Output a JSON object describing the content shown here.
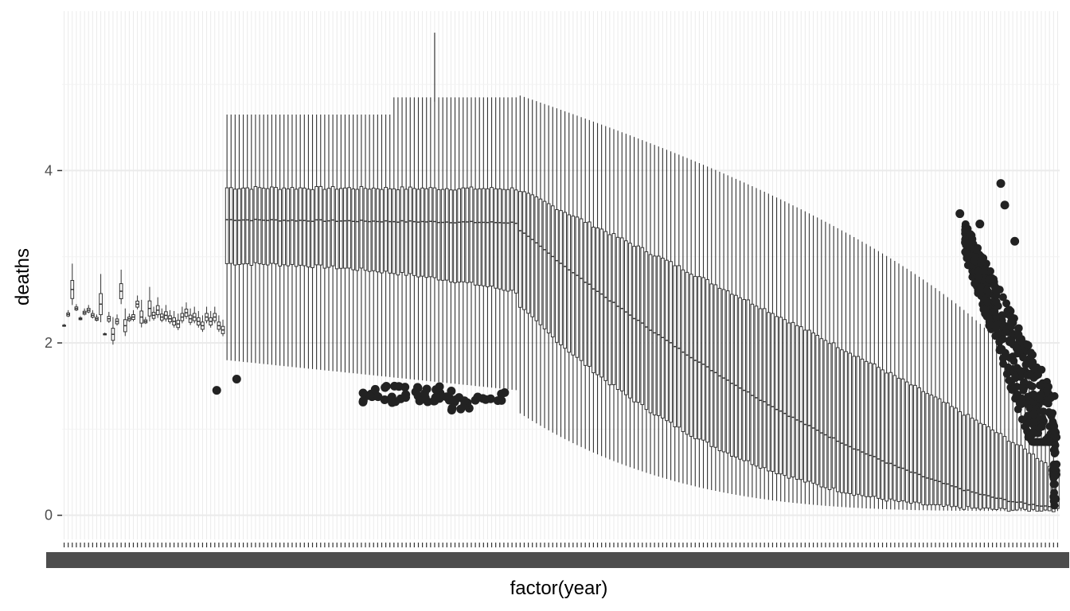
{
  "chart_data": {
    "type": "boxplot",
    "xlabel": "factor(year)",
    "ylabel": "deaths",
    "ylim": [
      -0.28,
      5.85
    ],
    "y_ticks": [
      0,
      2,
      4
    ],
    "y_tick_labels": [
      "0",
      "2",
      "4"
    ],
    "x_tick_labels_note": "overlapping year labels (unreadable)",
    "category_count": 245,
    "panel_background": "#ffffff",
    "grid_color": "#ebebeb",
    "box_color": "#333333",
    "outlier_color": "#222222",
    "early_years": {
      "columns": 40,
      "medians": [
        2.2,
        2.33,
        2.62,
        2.4,
        2.28,
        2.35,
        2.38,
        2.32,
        2.28,
        2.45,
        2.1,
        2.28,
        2.1,
        2.25,
        2.6,
        2.2,
        2.28,
        2.3,
        2.45,
        2.3,
        2.25,
        2.4,
        2.32,
        2.38,
        2.3,
        2.32,
        2.28,
        2.25,
        2.22,
        2.3,
        2.35,
        2.28,
        2.3,
        2.25,
        2.2,
        2.3,
        2.25,
        2.3,
        2.2,
        2.15
      ],
      "spreads": [
        0.02,
        0.05,
        0.3,
        0.05,
        0.03,
        0.05,
        0.06,
        0.06,
        0.05,
        0.35,
        0.02,
        0.08,
        0.2,
        0.08,
        0.25,
        0.2,
        0.06,
        0.08,
        0.1,
        0.2,
        0.05,
        0.25,
        0.1,
        0.15,
        0.1,
        0.12,
        0.1,
        0.12,
        0.12,
        0.12,
        0.12,
        0.12,
        0.12,
        0.12,
        0.12,
        0.12,
        0.12,
        0.12,
        0.12,
        0.12
      ]
    },
    "main_period": {
      "q3_start": 3.8,
      "q3_end": 0.5,
      "median_start": 3.43,
      "median_end": 0.1,
      "q1_start": 2.92,
      "q1_end": 0.06,
      "upper_whisker_start": 4.65,
      "upper_whisker_peak": 4.88,
      "upper_whisker_end": 0.6,
      "lower_whisker_start": 1.8,
      "lower_whisker_end": 0.05
    },
    "outlier_groups": [
      {
        "name": "isolated",
        "points": [
          [
            0.155,
            1.45
          ],
          [
            0.175,
            1.58
          ]
        ]
      },
      {
        "name": "mid-left cluster",
        "y_min": 1.3,
        "y_max": 1.5
      },
      {
        "name": "mid cluster",
        "y_min": 1.2,
        "y_max": 1.5
      },
      {
        "name": "right tail",
        "y_min": 1.0,
        "y_max": 3.85
      }
    ]
  }
}
